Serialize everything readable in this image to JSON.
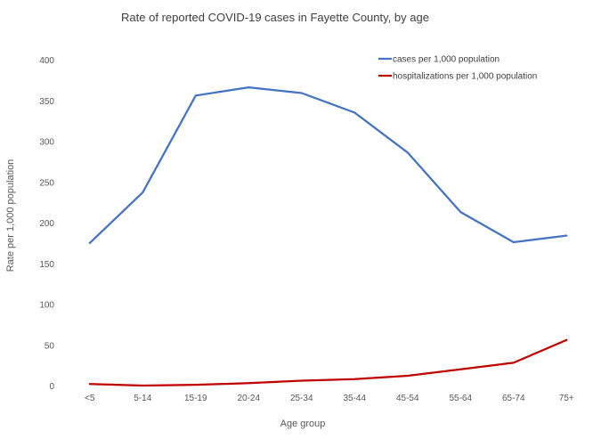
{
  "chart_data": {
    "type": "line",
    "title": "Rate of reported COVID-19 cases in Fayette County, by age",
    "xlabel": "Age group",
    "ylabel": "Rate per 1,000 population",
    "ylim": [
      0,
      400
    ],
    "yticks": [
      0,
      50,
      100,
      150,
      200,
      250,
      300,
      350,
      400
    ],
    "grid": false,
    "legend_position": "top-right",
    "categories": [
      "<5",
      "5-14",
      "15-19",
      "20-24",
      "25-34",
      "35-44",
      "45-54",
      "55-64",
      "65-74",
      "75+"
    ],
    "series": [
      {
        "name": "cases per 1,000 population",
        "color": "#4472C4",
        "values": [
          175,
          237,
          356,
          366,
          359,
          335,
          286,
          213,
          176,
          184
        ]
      },
      {
        "name": "hospitalizations per 1,000 population",
        "color": "#C00000",
        "values": [
          2,
          0,
          1,
          3,
          6,
          8,
          12,
          20,
          28,
          56
        ]
      }
    ]
  }
}
